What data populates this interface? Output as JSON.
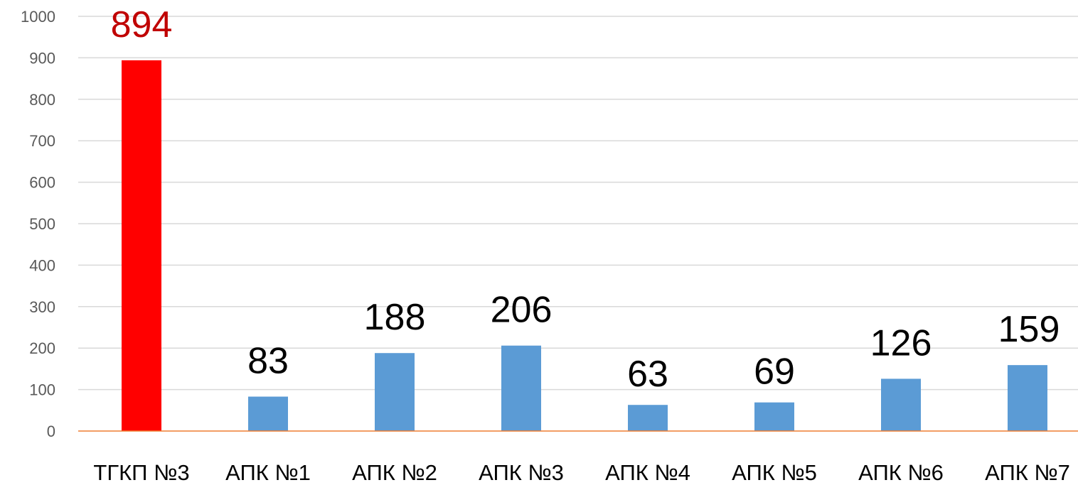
{
  "chart_data": {
    "type": "bar",
    "title": "",
    "xlabel": "",
    "ylabel": "",
    "categories": [
      "ТГКП №3",
      "АПК №1",
      "АПК №2",
      "АПК №3",
      "АПК №4",
      "АПК №5",
      "АПК №6",
      "АПК №7"
    ],
    "values": [
      894,
      83,
      188,
      206,
      63,
      69,
      126,
      159
    ],
    "data_labels": [
      "894",
      "83",
      "188",
      "206",
      "63",
      "69",
      "126",
      "159"
    ],
    "ylim": [
      0,
      1000
    ],
    "yticks": [
      "0",
      "100",
      "200",
      "300",
      "400",
      "500",
      "600",
      "700",
      "800",
      "900",
      "1000"
    ],
    "grid": true,
    "legend": "none",
    "colors": {
      "highlight_bar": "#ff0000",
      "highlight_label": "#c00000",
      "bar": "#5b9bd5",
      "label": "#000000",
      "grid": "#d9d9d9",
      "baseline": "#ed7d31",
      "tick_text": "#595959"
    }
  }
}
